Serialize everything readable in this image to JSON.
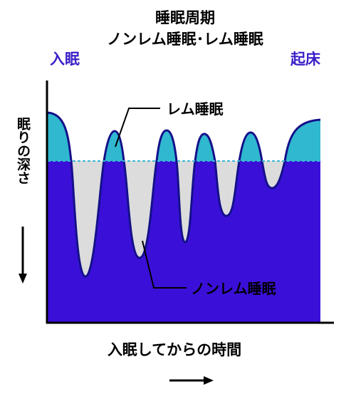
{
  "title": {
    "line1": "睡眠周期",
    "line2": "ノンレム睡眠･レム睡眠"
  },
  "corner_labels": {
    "sleep_onset": "入眠",
    "wake_up": "起床"
  },
  "annotations": {
    "rem": "レム睡眠",
    "nrem": "ノンレム睡眠"
  },
  "axes": {
    "x_label": "入眠してからの時間",
    "y_label": "眠りの深さ"
  },
  "colors": {
    "title_text": "#000000",
    "corner_text": "#3a1fc8",
    "nrem_fill": "#3a10d8",
    "rem_fill": "#2fb8cf",
    "curve_stroke": "#14108a",
    "plot_background": "#dcdcdc",
    "threshold_line": "#39b6d6",
    "axis": "#000000"
  }
}
